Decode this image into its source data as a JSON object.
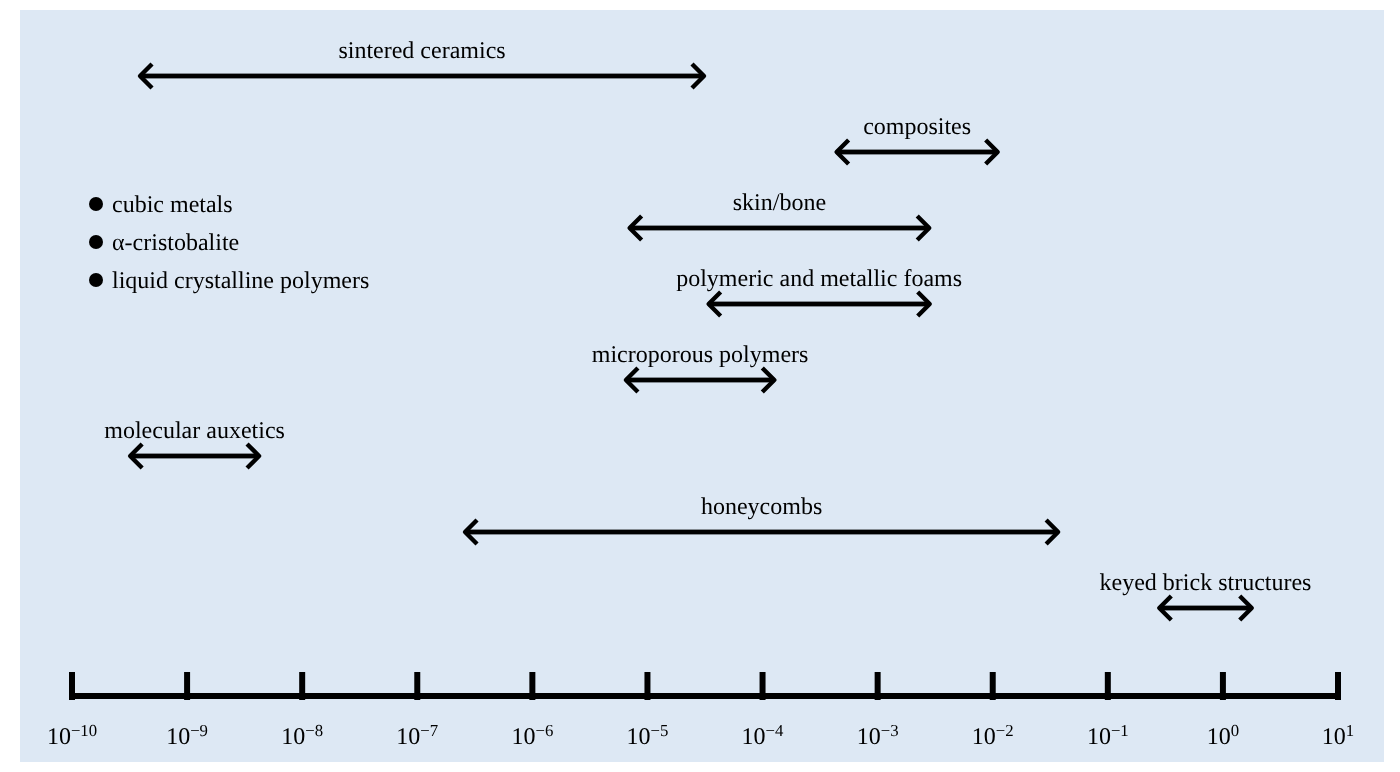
{
  "chart_data": {
    "type": "bar",
    "orientation": "horizontal",
    "log": "x",
    "color": "#000000",
    "categories": [
      "sintered ceramics",
      "composites",
      "skin/bone",
      "polymeric and metallic foams",
      "microporous polymers",
      "molecular auxetics",
      "honeycombs",
      "keyed brick structures"
    ],
    "base": [
      3.9e-10,
      0.00044,
      7e-06,
      3.4e-05,
      6.5e-06,
      3.2e-10,
      2.6e-07,
      0.28
    ],
    "values": [
      3.1e-05,
      0.0106,
      0.0028,
      0.0028,
      0.00012,
      3.9e-09,
      0.037,
      1.5
    ],
    "annotations": [
      "cubic metals",
      "α-cristobalite",
      "liquid crystalline polymers"
    ],
    "xlim": [
      1e-10,
      10
    ],
    "xticks": [
      {
        "value": 1e-10,
        "label": "10$^{−10}$"
      },
      {
        "value": 1e-09,
        "label": "10$^{−9}$"
      },
      {
        "value": 1e-08,
        "label": "10$^{−8}$"
      },
      {
        "value": 1e-07,
        "label": "10$^{−7}$"
      },
      {
        "value": 1e-06,
        "label": "10$^{−6}$"
      },
      {
        "value": 1e-05,
        "label": "10$^{−5}$"
      },
      {
        "value": 0.0001,
        "label": "10$^{−4}$"
      },
      {
        "value": 0.001,
        "label": "10$^{−3}$"
      },
      {
        "value": 0.01,
        "label": "10$^{−2}$"
      },
      {
        "value": 0.1,
        "label": "10$^{−1}$"
      },
      {
        "value": 1,
        "label": "10$^{0}$"
      },
      {
        "value": 10,
        "label": "10$^{1}$"
      }
    ]
  }
}
